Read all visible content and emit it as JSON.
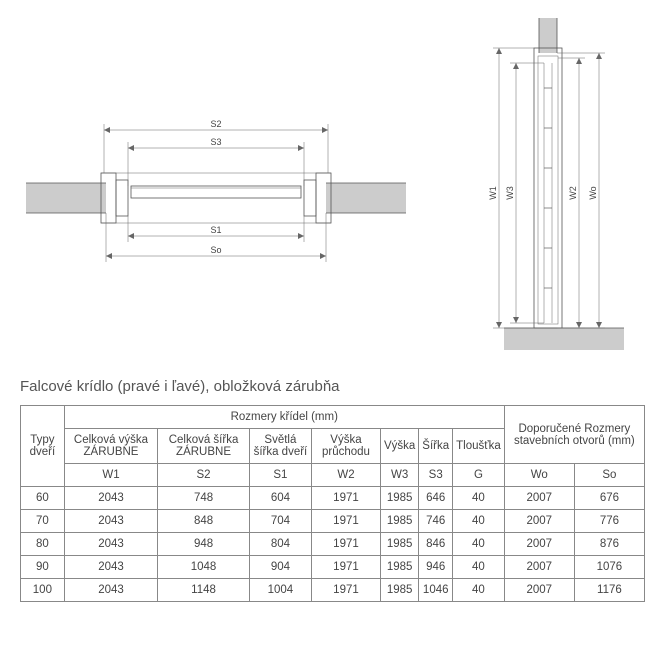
{
  "top_diagram": {
    "labels": {
      "s2": "S2",
      "s3": "S3",
      "s1": "S1",
      "so": "So"
    },
    "colors": {
      "line": "#666",
      "hatch": "#cccccc",
      "text": "#444444",
      "dark": "#222222",
      "background": "#ffffff"
    },
    "line_widths": {
      "thin": 0.5,
      "med": 0.8
    }
  },
  "side_diagram": {
    "labels": {
      "w1": "W1",
      "w3": "W3",
      "w2": "W2",
      "wo": "Wo"
    },
    "colors": {
      "line": "#666",
      "hatch": "#cccccc",
      "text": "#444444",
      "background": "#ffffff"
    }
  },
  "title": "Falcové krídlo (pravé i ľavé), obložková zárubňa",
  "table": {
    "group_main": "Rozmery křídel (mm)",
    "group_rec": "Doporučené Rozmery stavebních otvorů (mm)",
    "col_type": "Typy dveří",
    "columns": [
      {
        "label": "Celková výška ZÁRUBNE",
        "sym": "W1"
      },
      {
        "label": "Celková šířka ZÁRUBNE",
        "sym": "S2"
      },
      {
        "label": "Světlá šířka dveří",
        "sym": "S1"
      },
      {
        "label": "Výška průchodu",
        "sym": "W2"
      },
      {
        "label": "Výška",
        "sym": "W3"
      },
      {
        "label": "Šířka",
        "sym": "S3"
      },
      {
        "label": "Tloušťka",
        "sym": "G"
      }
    ],
    "rec_columns": [
      {
        "sym": "Wo"
      },
      {
        "sym": "So"
      }
    ],
    "rows": [
      {
        "type": "60",
        "w1": "2043",
        "s2": "748",
        "s1": "604",
        "w2": "1971",
        "w3": "1985",
        "s3": "646",
        "g": "40",
        "wo": "2007",
        "so": "676"
      },
      {
        "type": "70",
        "w1": "2043",
        "s2": "848",
        "s1": "704",
        "w2": "1971",
        "w3": "1985",
        "s3": "746",
        "g": "40",
        "wo": "2007",
        "so": "776"
      },
      {
        "type": "80",
        "w1": "2043",
        "s2": "948",
        "s1": "804",
        "w2": "1971",
        "w3": "1985",
        "s3": "846",
        "g": "40",
        "wo": "2007",
        "so": "876"
      },
      {
        "type": "90",
        "w1": "2043",
        "s2": "1048",
        "s1": "904",
        "w2": "1971",
        "w3": "1985",
        "s3": "946",
        "g": "40",
        "wo": "2007",
        "so": "1076"
      },
      {
        "type": "100",
        "w1": "2043",
        "s2": "1148",
        "s1": "1004",
        "w2": "1971",
        "w3": "1985",
        "s3": "1046",
        "g": "40",
        "wo": "2007",
        "so": "1176"
      }
    ],
    "border_color": "#888888",
    "text_color": "#444444",
    "font_size": 11.5
  }
}
